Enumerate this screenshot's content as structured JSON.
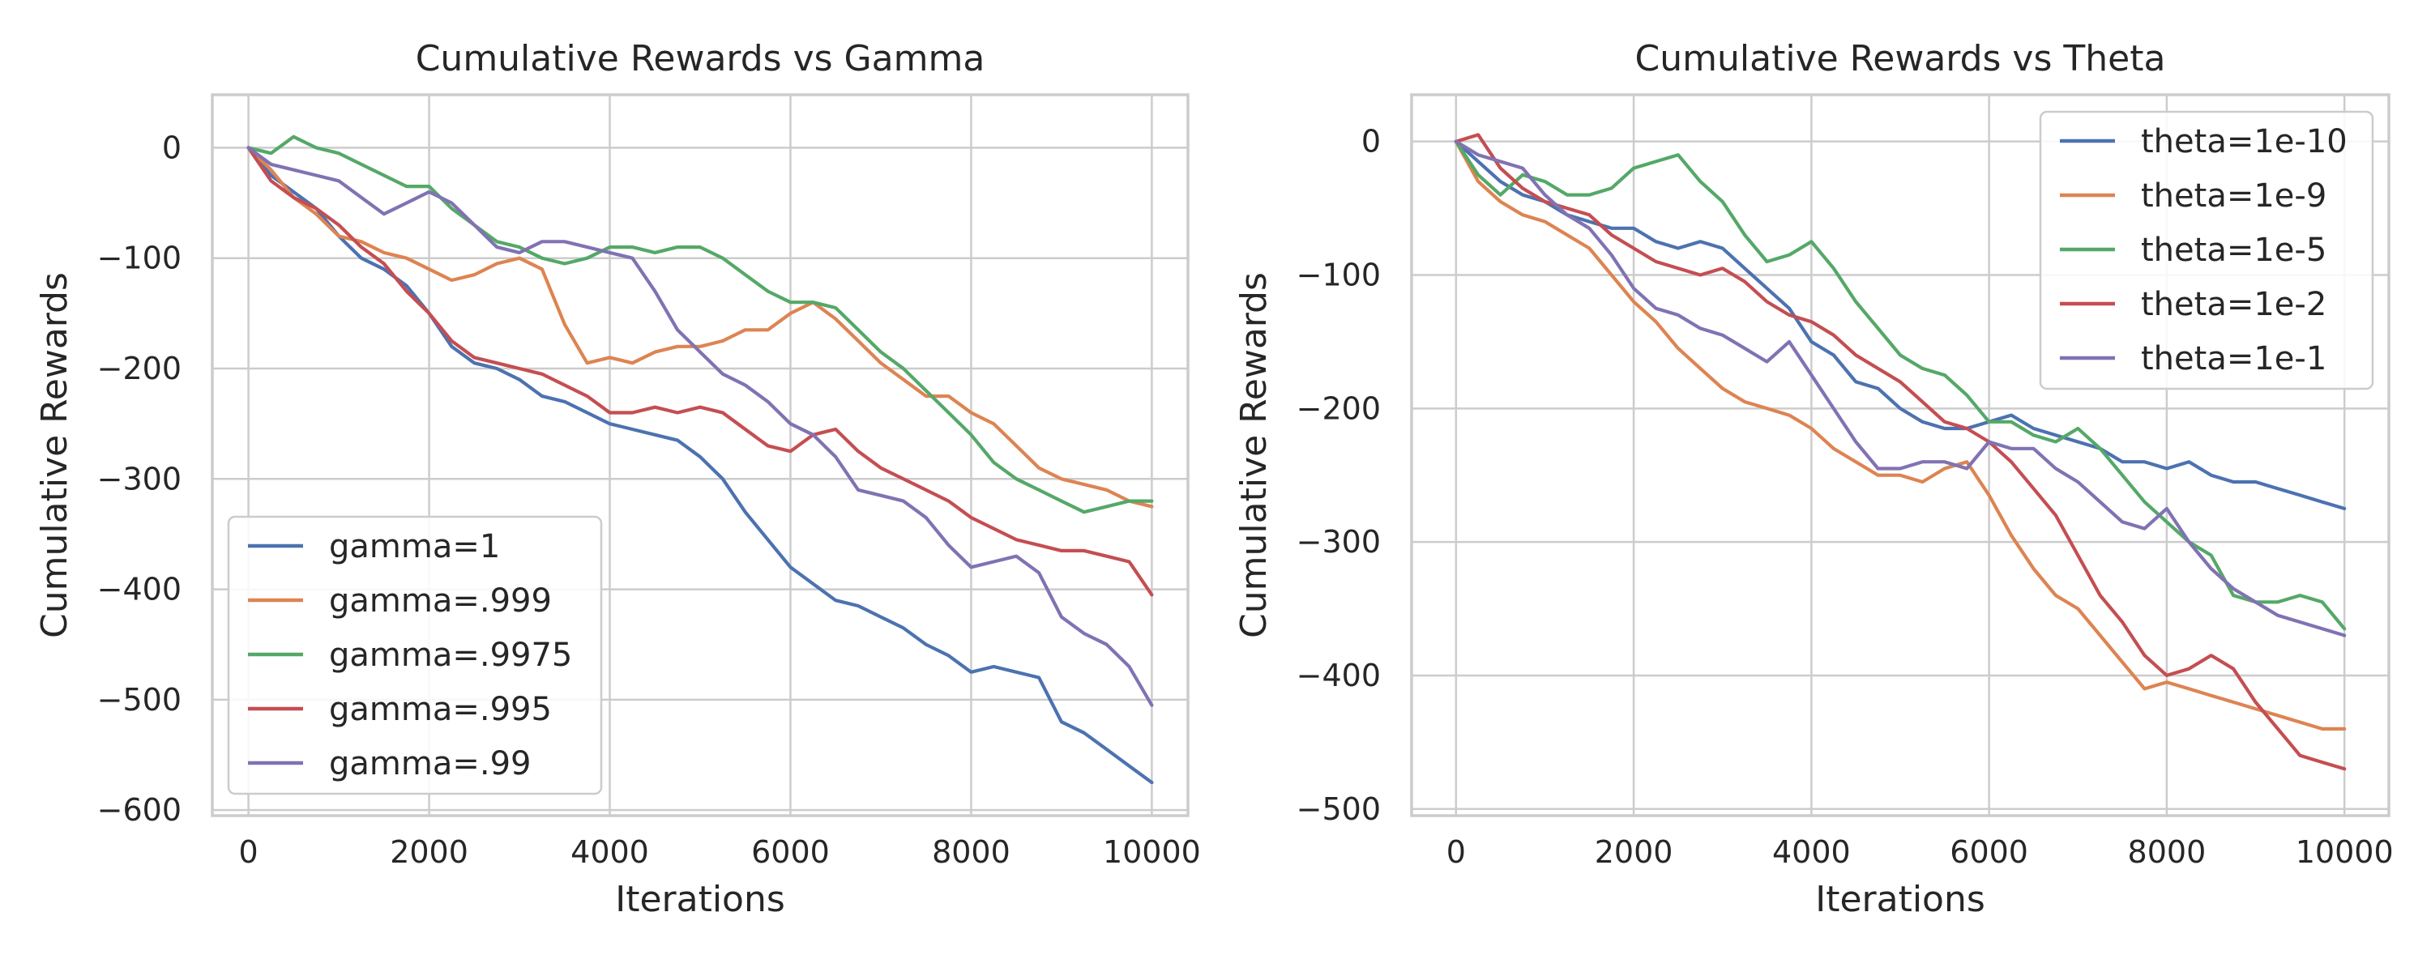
{
  "chart_data": [
    {
      "type": "line",
      "title": "Cumulative Rewards vs Gamma",
      "xlabel": "Iterations",
      "ylabel": "Cumulative Rewards",
      "xlim": [
        -400,
        10400
      ],
      "ylim": [
        -605,
        48
      ],
      "xticks": [
        0,
        2000,
        4000,
        6000,
        8000,
        10000
      ],
      "xtick_labels": [
        "0",
        "2000",
        "4000",
        "6000",
        "8000",
        "10000"
      ],
      "yticks": [
        0,
        -100,
        -200,
        -300,
        -400,
        -500,
        -600
      ],
      "ytick_labels": [
        "0",
        "−100",
        "−200",
        "−300",
        "−400",
        "−500",
        "−600"
      ],
      "grid": true,
      "legend_position": "lower-left",
      "series": [
        {
          "name": "gamma=1",
          "color": "#4c72b0",
          "x": [
            0,
            250,
            500,
            750,
            1000,
            1250,
            1500,
            1750,
            2000,
            2250,
            2500,
            2750,
            3000,
            3250,
            3500,
            3750,
            4000,
            4250,
            4500,
            4750,
            5000,
            5250,
            5500,
            5750,
            6000,
            6250,
            6500,
            6750,
            7000,
            7250,
            7500,
            7750,
            8000,
            8250,
            8500,
            8750,
            9000,
            9250,
            9500,
            9750,
            10000
          ],
          "y": [
            0,
            -25,
            -40,
            -55,
            -80,
            -100,
            -110,
            -125,
            -150,
            -180,
            -195,
            -200,
            -210,
            -225,
            -230,
            -240,
            -250,
            -255,
            -260,
            -265,
            -280,
            -300,
            -330,
            -355,
            -380,
            -395,
            -410,
            -415,
            -425,
            -435,
            -450,
            -460,
            -475,
            -470,
            -475,
            -480,
            -520,
            -530,
            -545,
            -560,
            -575
          ]
        },
        {
          "name": "gamma=.999",
          "color": "#dd8452",
          "x": [
            0,
            250,
            500,
            750,
            1000,
            1250,
            1500,
            1750,
            2000,
            2250,
            2500,
            2750,
            3000,
            3250,
            3500,
            3750,
            4000,
            4250,
            4500,
            4750,
            5000,
            5250,
            5500,
            5750,
            6000,
            6250,
            6500,
            6750,
            7000,
            7250,
            7500,
            7750,
            8000,
            8250,
            8500,
            8750,
            9000,
            9250,
            9500,
            9750,
            10000
          ],
          "y": [
            0,
            -20,
            -45,
            -60,
            -80,
            -85,
            -95,
            -100,
            -110,
            -120,
            -115,
            -105,
            -100,
            -110,
            -160,
            -195,
            -190,
            -195,
            -185,
            -180,
            -180,
            -175,
            -165,
            -165,
            -150,
            -140,
            -155,
            -175,
            -195,
            -210,
            -225,
            -225,
            -240,
            -250,
            -270,
            -290,
            -300,
            -305,
            -310,
            -320,
            -325
          ]
        },
        {
          "name": "gamma=.9975",
          "color": "#55a868",
          "x": [
            0,
            250,
            500,
            750,
            1000,
            1250,
            1500,
            1750,
            2000,
            2250,
            2500,
            2750,
            3000,
            3250,
            3500,
            3750,
            4000,
            4250,
            4500,
            4750,
            5000,
            5250,
            5500,
            5750,
            6000,
            6250,
            6500,
            6750,
            7000,
            7250,
            7500,
            7750,
            8000,
            8250,
            8500,
            8750,
            9000,
            9250,
            9500,
            9750,
            10000
          ],
          "y": [
            0,
            -5,
            10,
            0,
            -5,
            -15,
            -25,
            -35,
            -35,
            -55,
            -70,
            -85,
            -90,
            -100,
            -105,
            -100,
            -90,
            -90,
            -95,
            -90,
            -90,
            -100,
            -115,
            -130,
            -140,
            -140,
            -145,
            -165,
            -185,
            -200,
            -220,
            -240,
            -260,
            -285,
            -300,
            -310,
            -320,
            -330,
            -325,
            -320,
            -320
          ]
        },
        {
          "name": "gamma=.995",
          "color": "#c44e52",
          "x": [
            0,
            250,
            500,
            750,
            1000,
            1250,
            1500,
            1750,
            2000,
            2250,
            2500,
            2750,
            3000,
            3250,
            3500,
            3750,
            4000,
            4250,
            4500,
            4750,
            5000,
            5250,
            5500,
            5750,
            6000,
            6250,
            6500,
            6750,
            7000,
            7250,
            7500,
            7750,
            8000,
            8250,
            8500,
            8750,
            9000,
            9250,
            9500,
            9750,
            10000
          ],
          "y": [
            0,
            -30,
            -45,
            -55,
            -70,
            -90,
            -105,
            -130,
            -150,
            -175,
            -190,
            -195,
            -200,
            -205,
            -215,
            -225,
            -240,
            -240,
            -235,
            -240,
            -235,
            -240,
            -255,
            -270,
            -275,
            -260,
            -255,
            -275,
            -290,
            -300,
            -310,
            -320,
            -335,
            -345,
            -355,
            -360,
            -365,
            -365,
            -370,
            -375,
            -405
          ]
        },
        {
          "name": "gamma=.99",
          "color": "#8172b3",
          "x": [
            0,
            250,
            500,
            750,
            1000,
            1250,
            1500,
            1750,
            2000,
            2250,
            2500,
            2750,
            3000,
            3250,
            3500,
            3750,
            4000,
            4250,
            4500,
            4750,
            5000,
            5250,
            5500,
            5750,
            6000,
            6250,
            6500,
            6750,
            7000,
            7250,
            7500,
            7750,
            8000,
            8250,
            8500,
            8750,
            9000,
            9250,
            9500,
            9750,
            10000
          ],
          "y": [
            0,
            -15,
            -20,
            -25,
            -30,
            -45,
            -60,
            -50,
            -40,
            -50,
            -70,
            -90,
            -95,
            -85,
            -85,
            -90,
            -95,
            -100,
            -130,
            -165,
            -185,
            -205,
            -215,
            -230,
            -250,
            -260,
            -280,
            -310,
            -315,
            -320,
            -335,
            -360,
            -380,
            -375,
            -370,
            -385,
            -425,
            -440,
            -450,
            -470,
            -505
          ]
        }
      ]
    },
    {
      "type": "line",
      "title": "Cumulative Rewards vs Theta",
      "xlabel": "Iterations",
      "ylabel": "Cumulative Rewards",
      "xlim": [
        -500,
        10500
      ],
      "ylim": [
        -505,
        35
      ],
      "xticks": [
        0,
        2000,
        4000,
        6000,
        8000,
        10000
      ],
      "xtick_labels": [
        "0",
        "2000",
        "4000",
        "6000",
        "8000",
        "10000"
      ],
      "yticks": [
        0,
        -100,
        -200,
        -300,
        -400,
        -500
      ],
      "ytick_labels": [
        "0",
        "−100",
        "−200",
        "−300",
        "−400",
        "−500"
      ],
      "grid": true,
      "legend_position": "upper-right",
      "series": [
        {
          "name": "theta=1e-10",
          "color": "#4c72b0",
          "x": [
            0,
            250,
            500,
            750,
            1000,
            1250,
            1500,
            1750,
            2000,
            2250,
            2500,
            2750,
            3000,
            3250,
            3500,
            3750,
            4000,
            4250,
            4500,
            4750,
            5000,
            5250,
            5500,
            5750,
            6000,
            6250,
            6500,
            6750,
            7000,
            7250,
            7500,
            7750,
            8000,
            8250,
            8500,
            8750,
            9000,
            9250,
            9500,
            9750,
            10000
          ],
          "y": [
            0,
            -15,
            -30,
            -40,
            -45,
            -55,
            -60,
            -65,
            -65,
            -75,
            -80,
            -75,
            -80,
            -95,
            -110,
            -125,
            -150,
            -160,
            -180,
            -185,
            -200,
            -210,
            -215,
            -215,
            -210,
            -205,
            -215,
            -220,
            -225,
            -230,
            -240,
            -240,
            -245,
            -240,
            -250,
            -255,
            -255,
            -260,
            -265,
            -270,
            -275
          ]
        },
        {
          "name": "theta=1e-9",
          "color": "#dd8452",
          "x": [
            0,
            250,
            500,
            750,
            1000,
            1250,
            1500,
            1750,
            2000,
            2250,
            2500,
            2750,
            3000,
            3250,
            3500,
            3750,
            4000,
            4250,
            4500,
            4750,
            5000,
            5250,
            5500,
            5750,
            6000,
            6250,
            6500,
            6750,
            7000,
            7250,
            7500,
            7750,
            8000,
            8250,
            8500,
            8750,
            9000,
            9250,
            9500,
            9750,
            10000
          ],
          "y": [
            0,
            -30,
            -45,
            -55,
            -60,
            -70,
            -80,
            -100,
            -120,
            -135,
            -155,
            -170,
            -185,
            -195,
            -200,
            -205,
            -215,
            -230,
            -240,
            -250,
            -250,
            -255,
            -245,
            -240,
            -265,
            -295,
            -320,
            -340,
            -350,
            -370,
            -390,
            -410,
            -405,
            -410,
            -415,
            -420,
            -425,
            -430,
            -435,
            -440,
            -440
          ]
        },
        {
          "name": "theta=1e-5",
          "color": "#55a868",
          "x": [
            0,
            250,
            500,
            750,
            1000,
            1250,
            1500,
            1750,
            2000,
            2250,
            2500,
            2750,
            3000,
            3250,
            3500,
            3750,
            4000,
            4250,
            4500,
            4750,
            5000,
            5250,
            5500,
            5750,
            6000,
            6250,
            6500,
            6750,
            7000,
            7250,
            7500,
            7750,
            8000,
            8250,
            8500,
            8750,
            9000,
            9250,
            9500,
            9750,
            10000
          ],
          "y": [
            0,
            -25,
            -40,
            -25,
            -30,
            -40,
            -40,
            -35,
            -20,
            -15,
            -10,
            -30,
            -45,
            -70,
            -90,
            -85,
            -75,
            -95,
            -120,
            -140,
            -160,
            -170,
            -175,
            -190,
            -210,
            -210,
            -220,
            -225,
            -215,
            -230,
            -250,
            -270,
            -285,
            -300,
            -310,
            -340,
            -345,
            -345,
            -340,
            -345,
            -365
          ]
        },
        {
          "name": "theta=1e-2",
          "color": "#c44e52",
          "x": [
            0,
            250,
            500,
            750,
            1000,
            1250,
            1500,
            1750,
            2000,
            2250,
            2500,
            2750,
            3000,
            3250,
            3500,
            3750,
            4000,
            4250,
            4500,
            4750,
            5000,
            5250,
            5500,
            5750,
            6000,
            6250,
            6500,
            6750,
            7000,
            7250,
            7500,
            7750,
            8000,
            8250,
            8500,
            8750,
            9000,
            9250,
            9500,
            9750,
            10000
          ],
          "y": [
            0,
            5,
            -20,
            -35,
            -45,
            -50,
            -55,
            -70,
            -80,
            -90,
            -95,
            -100,
            -95,
            -105,
            -120,
            -130,
            -135,
            -145,
            -160,
            -170,
            -180,
            -195,
            -210,
            -215,
            -225,
            -240,
            -260,
            -280,
            -310,
            -340,
            -360,
            -385,
            -400,
            -395,
            -385,
            -395,
            -420,
            -440,
            -460,
            -465,
            -470
          ]
        },
        {
          "name": "theta=1e-1",
          "color": "#8172b3",
          "x": [
            0,
            250,
            500,
            750,
            1000,
            1250,
            1500,
            1750,
            2000,
            2250,
            2500,
            2750,
            3000,
            3250,
            3500,
            3750,
            4000,
            4250,
            4500,
            4750,
            5000,
            5250,
            5500,
            5750,
            6000,
            6250,
            6500,
            6750,
            7000,
            7250,
            7500,
            7750,
            8000,
            8250,
            8500,
            8750,
            9000,
            9250,
            9500,
            9750,
            10000
          ],
          "y": [
            0,
            -10,
            -15,
            -20,
            -40,
            -55,
            -65,
            -85,
            -110,
            -125,
            -130,
            -140,
            -145,
            -155,
            -165,
            -150,
            -175,
            -200,
            -225,
            -245,
            -245,
            -240,
            -240,
            -245,
            -225,
            -230,
            -230,
            -245,
            -255,
            -270,
            -285,
            -290,
            -275,
            -300,
            -320,
            -335,
            -345,
            -355,
            -360,
            -365,
            -370
          ]
        }
      ]
    }
  ]
}
